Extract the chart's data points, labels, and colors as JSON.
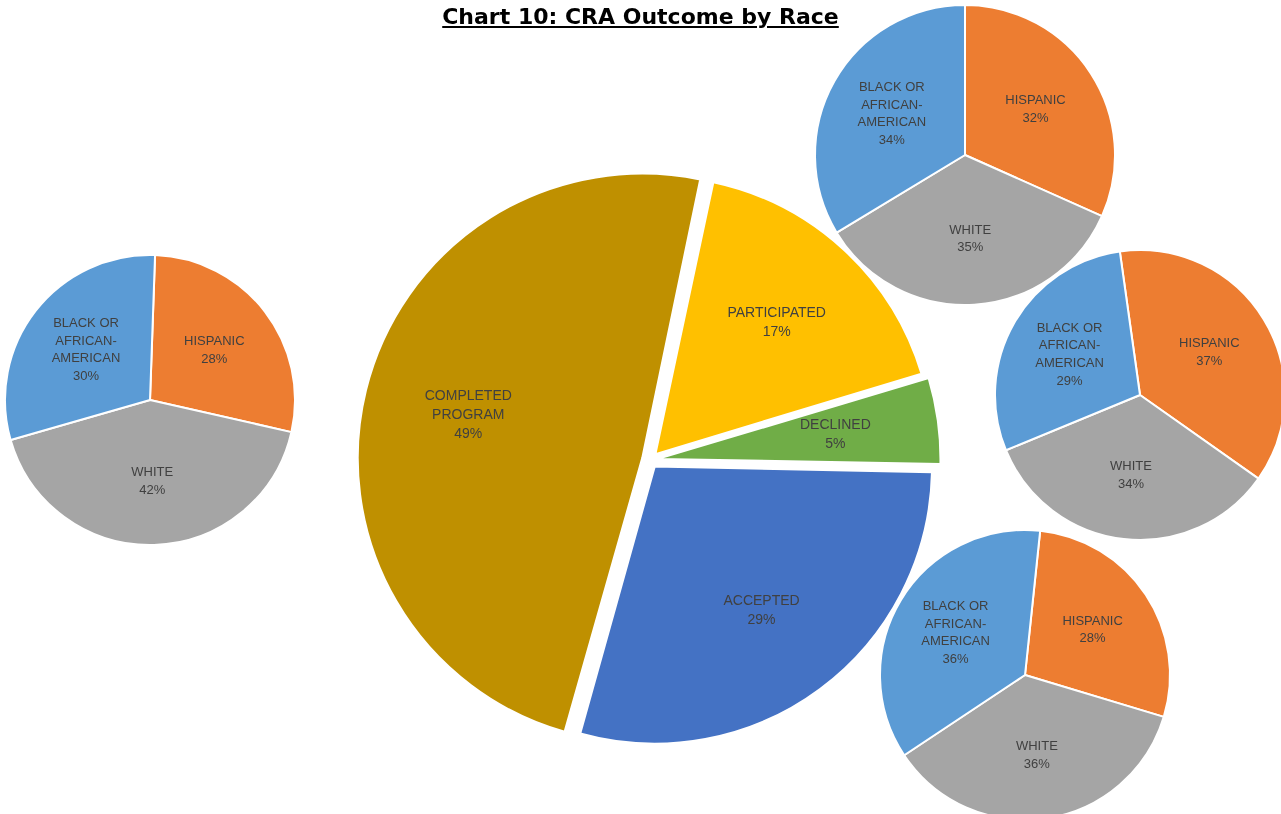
{
  "chart_data": [
    {
      "type": "pie",
      "title": "Chart 10: CRA Outcome by Race",
      "categories": [
        "PARTICIPATED",
        "DECLINED",
        "ACCEPTED",
        "COMPLETED PROGRAM"
      ],
      "values": [
        17,
        5,
        29,
        49
      ],
      "value_labels": [
        "17%",
        "5%",
        "29%",
        "49%"
      ],
      "colors": [
        "#ffc000",
        "#70ad47",
        "#4472c4",
        "#bf9000"
      ]
    },
    {
      "type": "pie",
      "categories": [
        "HISPANIC",
        "WHITE",
        "BLACK OR AFRICAN-AMERICAN"
      ],
      "values": [
        28,
        42,
        30
      ],
      "value_labels": [
        "28%",
        "42%",
        "30%"
      ],
      "colors": [
        "#ed7d31",
        "#a5a5a5",
        "#5b9bd5"
      ]
    },
    {
      "type": "pie",
      "categories": [
        "HISPANIC",
        "WHITE",
        "BLACK OR AFRICAN-AMERICAN"
      ],
      "values": [
        32,
        35,
        34
      ],
      "value_labels": [
        "32%",
        "35%",
        "34%"
      ],
      "colors": [
        "#ed7d31",
        "#a5a5a5",
        "#5b9bd5"
      ]
    },
    {
      "type": "pie",
      "categories": [
        "HISPANIC",
        "WHITE",
        "BLACK OR AFRICAN-AMERICAN"
      ],
      "values": [
        37,
        34,
        29
      ],
      "value_labels": [
        "37%",
        "34%",
        "29%"
      ],
      "colors": [
        "#ed7d31",
        "#a5a5a5",
        "#5b9bd5"
      ]
    },
    {
      "type": "pie",
      "categories": [
        "HISPANIC",
        "WHITE",
        "BLACK OR AFRICAN-AMERICAN"
      ],
      "values": [
        28,
        36,
        36
      ],
      "value_labels": [
        "28%",
        "36%",
        "36%"
      ],
      "colors": [
        "#ed7d31",
        "#a5a5a5",
        "#5b9bd5"
      ]
    }
  ]
}
